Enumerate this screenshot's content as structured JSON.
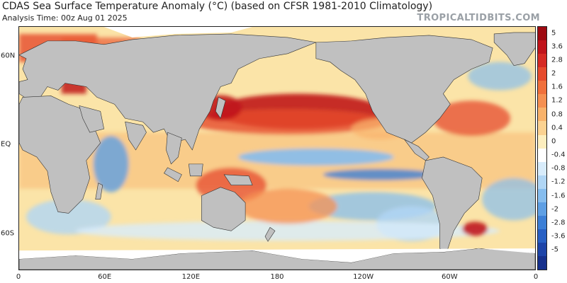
{
  "title": "CDAS Sea Surface Temperature Anomaly (°C) (based on CFSR 1981-2010 Climatology)",
  "subtitle": "Analysis Time: 00z Aug 01 2025",
  "brand": "TROPICALTIDBITS.COM",
  "x_ticks": [
    {
      "label": "0",
      "lon": 0
    },
    {
      "label": "60E",
      "lon": 60
    },
    {
      "label": "120E",
      "lon": 120
    },
    {
      "label": "180",
      "lon": 180
    },
    {
      "label": "120W",
      "lon": 240
    },
    {
      "label": "60W",
      "lon": 300
    },
    {
      "label": "0",
      "lon": 360
    }
  ],
  "y_ticks": [
    {
      "label": "60N",
      "lat": 60
    },
    {
      "label": "EQ",
      "lat": 0
    },
    {
      "label": "60S",
      "lat": -60
    }
  ],
  "colorbar": {
    "ticks": [
      "5",
      "3.6",
      "2.8",
      "2",
      "1.6",
      "1.2",
      "0.8",
      "0.4",
      "0",
      "-0.4",
      "-0.8",
      "-1.2",
      "-1.6",
      "-2",
      "-2.8",
      "-3.6",
      "-5"
    ],
    "colors": [
      "#9e0a12",
      "#c0141b",
      "#d62a24",
      "#e64b2d",
      "#f0703c",
      "#f59052",
      "#f8b26b",
      "#fbd291",
      "#fdeebe",
      "#ffffff",
      "#d8ecfb",
      "#b0d6f5",
      "#86bdee",
      "#5e9fe4",
      "#3c7fd6",
      "#2860c4",
      "#1d44a8",
      "#16308c"
    ]
  },
  "colors": {
    "land": "#c0c0c0",
    "ice": "#ffffff",
    "border": "#222222",
    "warm_strong": "#d62a24",
    "warm": "#f8b26b",
    "cool": "#86bdee",
    "cool_strong": "#3c7fd6",
    "brand": "#9aa0a6"
  }
}
